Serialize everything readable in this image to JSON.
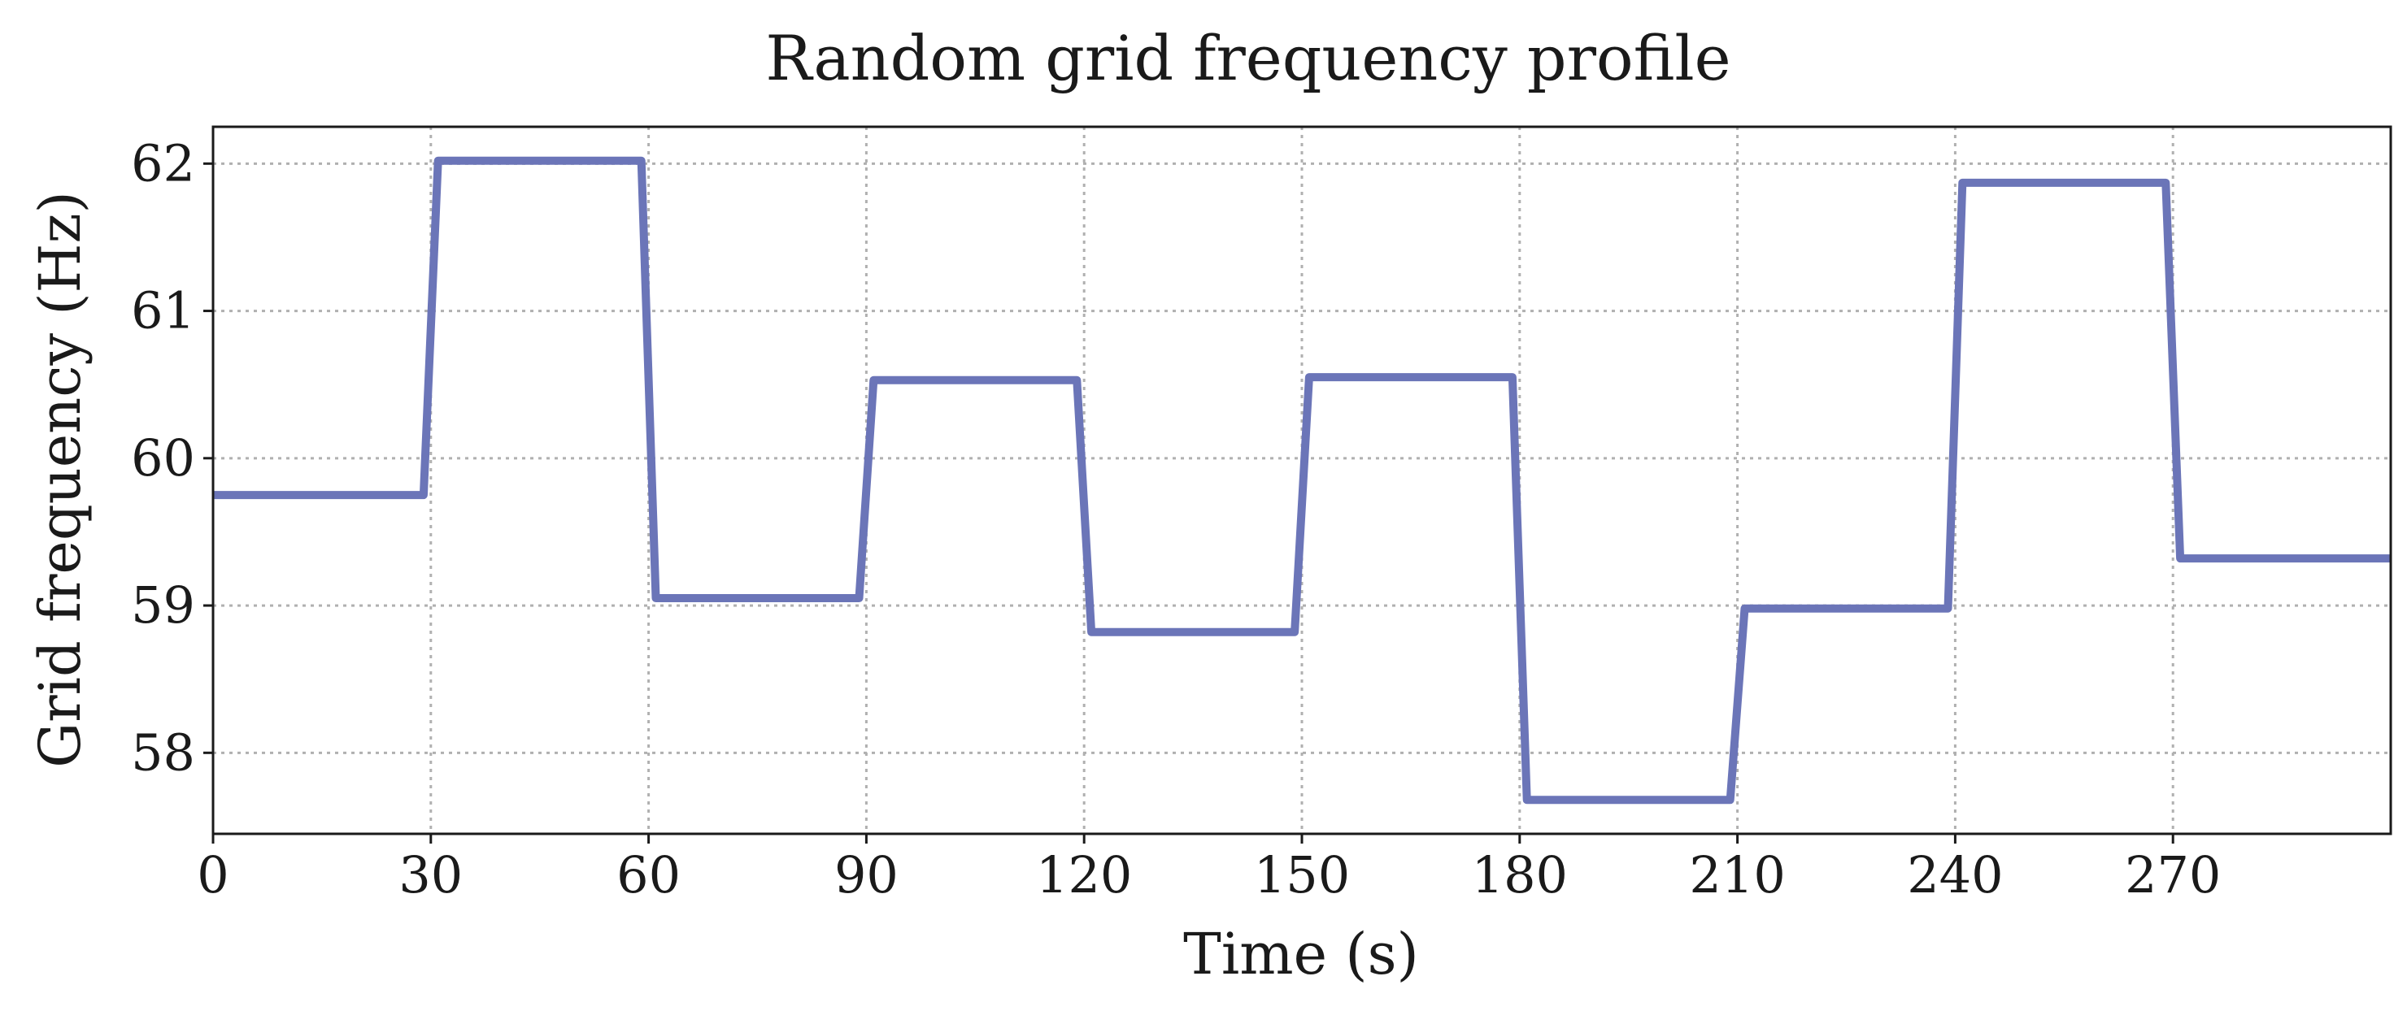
{
  "chart_data": {
    "type": "line",
    "title": "Random grid frequency profile",
    "xlabel": "Time (s)",
    "ylabel": "Grid frequency (Hz)",
    "xlim": [
      0,
      300
    ],
    "ylim": [
      57.45,
      62.25
    ],
    "x_ticks": [
      0,
      30,
      60,
      90,
      120,
      150,
      180,
      210,
      240,
      270
    ],
    "y_ticks": [
      58,
      59,
      60,
      61,
      62
    ],
    "grid": true,
    "line_color": "#6b75b8",
    "series": [
      {
        "step": "post",
        "x": [
          0,
          30,
          60,
          90,
          120,
          150,
          180,
          210,
          240,
          270,
          300
        ],
        "y": [
          59.75,
          62.02,
          59.05,
          60.53,
          58.82,
          60.55,
          57.68,
          58.98,
          61.87,
          59.32,
          59.32
        ]
      }
    ]
  }
}
